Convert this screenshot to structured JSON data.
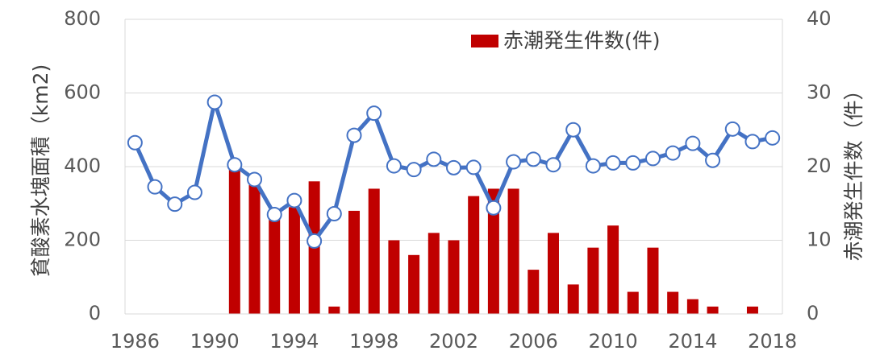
{
  "chart_data": {
    "type": "bar+line",
    "x": [
      1986,
      1987,
      1988,
      1989,
      1990,
      1991,
      1992,
      1993,
      1994,
      1995,
      1996,
      1997,
      1998,
      1999,
      2000,
      2001,
      2002,
      2003,
      2004,
      2005,
      2006,
      2007,
      2008,
      2009,
      2010,
      2011,
      2012,
      2013,
      2014,
      2015,
      2016,
      2017,
      2018
    ],
    "x_tick_labels": [
      "1986",
      "1990",
      "1994",
      "1998",
      "2002",
      "2006",
      "2010",
      "2014",
      "2018"
    ],
    "left_axis": {
      "label": "貧酸素水塊面積（km2)",
      "ylim": [
        0,
        800
      ],
      "ticks": [
        "0",
        "200",
        "400",
        "600",
        "800"
      ]
    },
    "right_axis": {
      "label": "赤潮発生件数（件）",
      "ylim": [
        0,
        40
      ],
      "ticks": [
        "0",
        "10",
        "20",
        "30",
        "40"
      ]
    },
    "series": [
      {
        "name": "赤潮発生件数(件)",
        "kind": "bar",
        "axis": "right",
        "color": "#c00000",
        "values": [
          null,
          null,
          null,
          null,
          null,
          20,
          17.5,
          13.5,
          14.5,
          18,
          1,
          14,
          17,
          10,
          8,
          11,
          10,
          16,
          17,
          17,
          6,
          11,
          4,
          9,
          12,
          3,
          9,
          3,
          2,
          1,
          null,
          1,
          null
        ]
      },
      {
        "kind": "line",
        "axis": "left",
        "color": "#4472c4",
        "marker_fill": "#ffffff",
        "values": [
          465,
          345,
          298,
          330,
          575,
          405,
          365,
          270,
          308,
          198,
          272,
          485,
          545,
          402,
          392,
          420,
          397,
          398,
          288,
          413,
          420,
          405,
          500,
          402,
          410,
          410,
          422,
          437,
          463,
          417,
          502,
          468,
          478
        ]
      }
    ],
    "legend": {
      "position": "top-right",
      "entries": [
        "赤潮発生件数(件)"
      ]
    },
    "grid": {
      "horizontal": true
    }
  }
}
